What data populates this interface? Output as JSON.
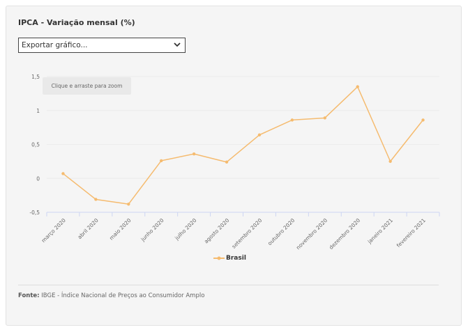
{
  "title": "IPCA - Variação mensal (%)",
  "export_menu": {
    "selected": "Exportar gráfico..."
  },
  "zoom_hint": "Clique e arraste para zoom",
  "source": {
    "label": "Fonte:",
    "text": " IBGE - Índice Nacional de Preços ao Consumidor Amplo"
  },
  "colors": {
    "series": "#f5bb6f",
    "grid": "#ececec",
    "axis": "#cdd5f2"
  },
  "chart_data": {
    "type": "line",
    "title": "IPCA - Variação mensal (%)",
    "categories": [
      "março 2020",
      "abril 2020",
      "maio 2020",
      "junho 2020",
      "julho 2020",
      "agosto 2020",
      "setembro 2020",
      "outubro 2020",
      "novembro 2020",
      "dezembro 2020",
      "janeiro 2021",
      "fevereiro 2021"
    ],
    "series": [
      {
        "name": "Brasil",
        "values": [
          0.07,
          -0.31,
          -0.38,
          0.26,
          0.36,
          0.24,
          0.64,
          0.86,
          0.89,
          1.35,
          0.25,
          0.86
        ]
      }
    ],
    "yticks": [
      "1,5",
      "1",
      "0,5",
      "0",
      "-0,5"
    ],
    "ylim": [
      -0.5,
      1.5
    ],
    "grid": true,
    "legend": "bottom-center"
  }
}
